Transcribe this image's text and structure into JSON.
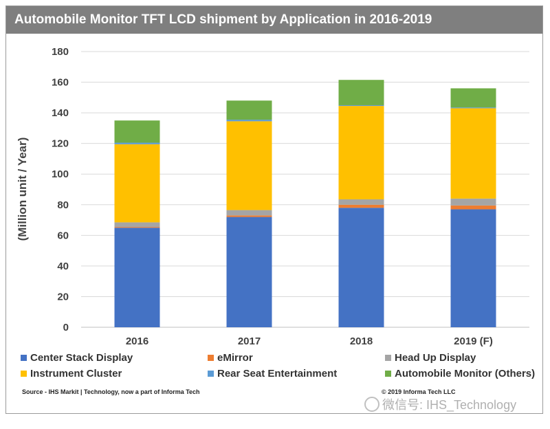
{
  "title": "Automobile Monitor  TFT LCD shipment by Application in 2016-2019",
  "source": "Source - IHS Markit | Technology,  now a part of Informa  Tech",
  "copyright": "© 2019 Informa  Tech LLC",
  "watermark": "微信号: IHS_Technology",
  "colors": {
    "center_stack": "#4472c4",
    "emirror": "#ed7d31",
    "head_up": "#a5a5a5",
    "instrument": "#ffc000",
    "rear_seat": "#5b9bd5",
    "others": "#70ad47"
  },
  "chart_data": {
    "type": "bar",
    "stacked": true,
    "title": "Automobile Monitor  TFT LCD shipment by Application in 2016-2019",
    "xlabel": "",
    "ylabel": "(Million unit / Year)",
    "ylim": [
      0,
      180
    ],
    "yticks": [
      0,
      20,
      40,
      60,
      80,
      100,
      120,
      140,
      160,
      180
    ],
    "categories": [
      "2016",
      "2017",
      "2018",
      "2019 (F)"
    ],
    "series": [
      {
        "name": "Center Stack Display",
        "key": "center_stack",
        "values": [
          65,
          72,
          78,
          77
        ]
      },
      {
        "name": "eMirror",
        "key": "emirror",
        "values": [
          0.5,
          1,
          2,
          2.5
        ]
      },
      {
        "name": "Head Up Display",
        "key": "head_up",
        "values": [
          3,
          3.5,
          3.5,
          4.5
        ]
      },
      {
        "name": "Instrument Cluster",
        "key": "instrument",
        "values": [
          51,
          58,
          61,
          59
        ]
      },
      {
        "name": "Rear Seat Entertainment",
        "key": "rear_seat",
        "values": [
          1,
          1,
          0.5,
          0.5
        ]
      },
      {
        "name": "Automobile Monitor (Others)",
        "key": "others",
        "values": [
          14.5,
          12.5,
          16.5,
          12.5
        ]
      }
    ],
    "legend": [
      {
        "label": "Center Stack Display",
        "key": "center_stack"
      },
      {
        "label": "eMirror",
        "key": "emirror"
      },
      {
        "label": "Head Up Display",
        "key": "head_up"
      },
      {
        "label": "Instrument Cluster",
        "key": "instrument"
      },
      {
        "label": "Rear Seat Entertainment",
        "key": "rear_seat"
      },
      {
        "label": "Automobile Monitor (Others)",
        "key": "others"
      }
    ],
    "legend_position": "bottom",
    "grid": true
  }
}
